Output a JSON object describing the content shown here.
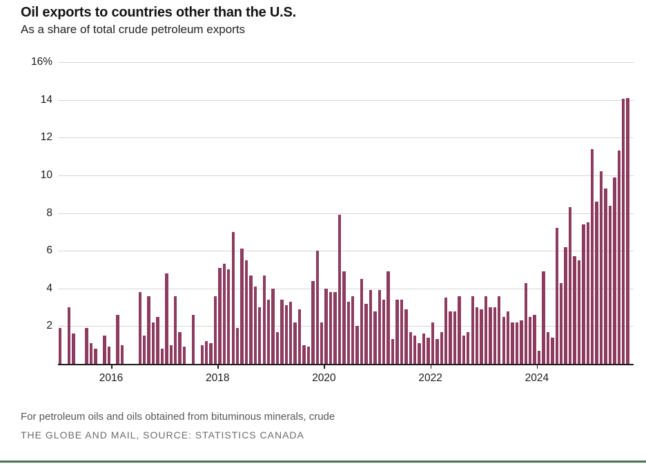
{
  "header": {
    "title": "Oil exports to countries other than the U.S.",
    "subtitle": "As a share of total crude petroleum exports"
  },
  "footer": {
    "note": "For petroleum oils and oils obtained from bituminous minerals, crude",
    "credit": "THE GLOBE AND MAIL, SOURCE: STATISTICS CANADA"
  },
  "colors": {
    "bar": "#8d3c60",
    "axis": "#1a1a1a",
    "grid": "#d6d6d6",
    "bottom_rule_green": "#4a7158"
  },
  "chart_data": {
    "type": "bar",
    "title": "Oil exports to countries other than the U.S.",
    "subtitle": "As a share of total crude petroleum exports",
    "unit": "%",
    "frequency": "monthly",
    "x_start_year": 2015,
    "ylim": [
      0,
      16
    ],
    "grid": true,
    "y_ticks": [
      {
        "value": 16,
        "label": "16%"
      },
      {
        "value": 14,
        "label": "14"
      },
      {
        "value": 12,
        "label": "12"
      },
      {
        "value": 10,
        "label": "10"
      },
      {
        "value": 8,
        "label": "8"
      },
      {
        "value": 6,
        "label": "6"
      },
      {
        "value": 4,
        "label": "4"
      },
      {
        "value": 2,
        "label": "2"
      }
    ],
    "x_axis": {
      "tick_labels": [
        "2016",
        "2018",
        "2020",
        "2022",
        "2024"
      ],
      "tick_month_indices": [
        12,
        36,
        60,
        84,
        108
      ]
    },
    "values": [
      1.9,
      0,
      3.0,
      1.6,
      0,
      0,
      1.9,
      1.1,
      0.8,
      0,
      1.5,
      0.9,
      0,
      2.6,
      1.0,
      0,
      0,
      0,
      3.8,
      1.5,
      3.6,
      2.2,
      2.5,
      0.8,
      4.8,
      1.0,
      3.6,
      1.7,
      0.9,
      0,
      2.6,
      0,
      1.0,
      1.2,
      1.1,
      3.6,
      5.1,
      5.3,
      5.0,
      7.0,
      1.9,
      6.1,
      5.5,
      4.7,
      4.1,
      3.0,
      4.7,
      3.4,
      4.0,
      1.7,
      3.4,
      3.1,
      3.3,
      2.2,
      2.9,
      1.0,
      0.9,
      4.4,
      6.0,
      2.2,
      4.0,
      3.8,
      3.8,
      7.9,
      4.9,
      3.3,
      3.6,
      2.0,
      4.5,
      3.2,
      3.9,
      2.8,
      3.9,
      3.4,
      4.9,
      1.3,
      3.4,
      3.4,
      2.9,
      1.7,
      1.5,
      1.1,
      1.6,
      1.4,
      2.2,
      1.3,
      1.7,
      3.5,
      2.8,
      2.8,
      3.6,
      1.5,
      1.7,
      3.6,
      3.0,
      2.9,
      3.6,
      3.0,
      3.0,
      3.6,
      2.5,
      2.8,
      2.2,
      2.2,
      2.3,
      4.3,
      2.5,
      2.6,
      0.7,
      4.9,
      1.7,
      1.4,
      7.2,
      4.3,
      6.2,
      8.3,
      5.7,
      5.5,
      7.4,
      7.5,
      11.4,
      8.6,
      10.2,
      9.3,
      8.4,
      9.9,
      11.3,
      14.05,
      14.1
    ]
  }
}
